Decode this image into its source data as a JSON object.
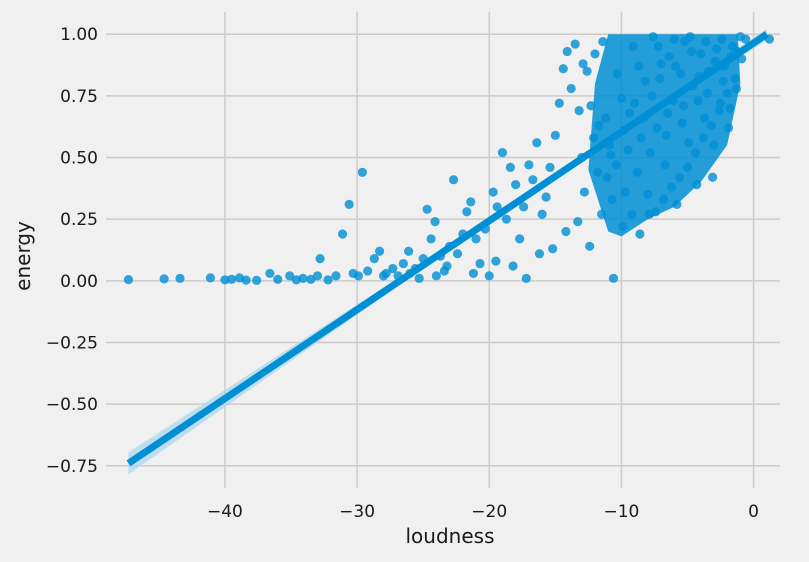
{
  "chart_data": {
    "type": "scatter",
    "title": "",
    "xlabel": "loudness",
    "ylabel": "energy",
    "xlim": [
      -49,
      2
    ],
    "ylim": [
      -0.84,
      1.09
    ],
    "x_ticks": [
      -40,
      -30,
      -20,
      -10,
      0
    ],
    "x_tick_labels": [
      "−40",
      "−30",
      "−20",
      "−10",
      "0"
    ],
    "y_ticks": [
      -0.75,
      -0.5,
      -0.25,
      0.0,
      0.25,
      0.5,
      0.75,
      1.0
    ],
    "y_tick_labels": [
      "−0.75",
      "−0.50",
      "−0.25",
      "0.00",
      "0.25",
      "0.50",
      "0.75",
      "1.00"
    ],
    "grid": true,
    "colors": {
      "background": "#f0f0f0",
      "grid": "#cbcbcb",
      "points": "#008fd5",
      "regression_line": "#008fd5",
      "confidence_band": "#a8d4ee"
    },
    "regression": {
      "x": [
        -47.3,
        1.0
      ],
      "y": [
        -0.74,
        1.0
      ],
      "ci_halfwidth_ends": 0.045
    },
    "series": [
      {
        "points": [
          [
            -47.3,
            0.005
          ],
          [
            -44.6,
            0.008
          ],
          [
            -43.4,
            0.01
          ],
          [
            -41.1,
            0.012
          ],
          [
            -40.0,
            0.004
          ],
          [
            -39.5,
            0.006
          ],
          [
            -38.9,
            0.012
          ],
          [
            -38.4,
            0.003
          ],
          [
            -37.6,
            0.002
          ],
          [
            -36.6,
            0.03
          ],
          [
            -36.0,
            0.006
          ],
          [
            -35.1,
            0.02
          ],
          [
            -34.6,
            0.004
          ],
          [
            -34.1,
            0.01
          ],
          [
            -33.5,
            0.006
          ],
          [
            -33.0,
            0.02
          ],
          [
            -32.8,
            0.09
          ],
          [
            -32.2,
            0.004
          ],
          [
            -31.6,
            0.02
          ],
          [
            -31.1,
            0.19
          ],
          [
            -30.6,
            0.31
          ],
          [
            -30.3,
            0.03
          ],
          [
            -29.9,
            0.02
          ],
          [
            -29.6,
            0.44
          ],
          [
            -29.2,
            0.04
          ],
          [
            -28.7,
            0.09
          ],
          [
            -28.3,
            0.12
          ],
          [
            -27.8,
            0.03
          ],
          [
            -27.3,
            0.05
          ],
          [
            -26.9,
            0.02
          ],
          [
            -26.5,
            0.07
          ],
          [
            -26.1,
            0.12
          ],
          [
            -25.6,
            0.05
          ],
          [
            -25.0,
            0.09
          ],
          [
            -24.7,
            0.29
          ],
          [
            -24.4,
            0.17
          ],
          [
            -24.1,
            0.24
          ],
          [
            -23.7,
            0.1
          ],
          [
            -23.4,
            0.04
          ],
          [
            -23.0,
            0.14
          ],
          [
            -22.7,
            0.41
          ],
          [
            -22.4,
            0.11
          ],
          [
            -22.0,
            0.19
          ],
          [
            -21.7,
            0.28
          ],
          [
            -21.4,
            0.32
          ],
          [
            -21.0,
            0.17
          ],
          [
            -20.7,
            0.07
          ],
          [
            -20.3,
            0.21
          ],
          [
            -20.0,
            0.02
          ],
          [
            -19.7,
            0.36
          ],
          [
            -19.4,
            0.3
          ],
          [
            -19.0,
            0.52
          ],
          [
            -18.7,
            0.25
          ],
          [
            -18.4,
            0.46
          ],
          [
            -18.0,
            0.39
          ],
          [
            -17.7,
            0.17
          ],
          [
            -17.4,
            0.3
          ],
          [
            -17.0,
            0.47
          ],
          [
            -16.7,
            0.41
          ],
          [
            -16.4,
            0.56
          ],
          [
            -16.0,
            0.27
          ],
          [
            -15.7,
            0.34
          ],
          [
            -15.4,
            0.46
          ],
          [
            -15.0,
            0.59
          ],
          [
            -14.7,
            0.72
          ],
          [
            -14.4,
            0.86
          ],
          [
            -14.1,
            0.93
          ],
          [
            -13.8,
            0.78
          ],
          [
            -13.5,
            0.96
          ],
          [
            -13.2,
            0.69
          ],
          [
            -12.9,
            0.88
          ],
          [
            -12.6,
            0.85
          ],
          [
            -12.3,
            0.71
          ],
          [
            -12.0,
            0.92
          ],
          [
            -11.7,
            0.63
          ],
          [
            -11.4,
            0.97
          ],
          [
            -11.1,
            0.42
          ],
          [
            -10.8,
            0.51
          ],
          [
            -10.6,
            0.01
          ],
          [
            -10.3,
            0.84
          ],
          [
            -10.0,
            0.74
          ],
          [
            -9.7,
            0.36
          ],
          [
            -9.4,
            0.68
          ],
          [
            -9.1,
            0.95
          ],
          [
            -8.8,
            0.44
          ],
          [
            -8.5,
            0.58
          ],
          [
            -8.2,
            0.81
          ],
          [
            -7.9,
            0.27
          ],
          [
            -7.6,
            0.99
          ],
          [
            -7.3,
            0.62
          ],
          [
            -7.0,
            0.88
          ],
          [
            -6.7,
            0.47
          ],
          [
            -6.4,
            0.91
          ],
          [
            -6.1,
            0.73
          ],
          [
            -5.8,
            0.31
          ],
          [
            -5.5,
            0.84
          ],
          [
            -5.2,
            0.97
          ],
          [
            -4.9,
            0.56
          ],
          [
            -4.6,
            0.79
          ],
          [
            -4.3,
            0.39
          ],
          [
            -4.0,
            0.92
          ],
          [
            -3.7,
            0.66
          ],
          [
            -3.4,
            0.85
          ],
          [
            -3.1,
            0.42
          ],
          [
            -2.8,
            0.94
          ],
          [
            -2.5,
            0.72
          ],
          [
            -2.2,
            0.87
          ],
          [
            -1.9,
            0.62
          ],
          [
            -1.6,
            0.95
          ],
          [
            -1.3,
            0.78
          ],
          [
            -1.0,
            0.99
          ],
          [
            -0.6,
            0.98
          ],
          [
            1.2,
            0.98
          ],
          [
            -28.0,
            0.02
          ],
          [
            -26.0,
            0.03
          ],
          [
            -25.3,
            0.01
          ],
          [
            -24.0,
            0.02
          ],
          [
            -23.2,
            0.06
          ],
          [
            -21.2,
            0.03
          ],
          [
            -19.5,
            0.08
          ],
          [
            -18.2,
            0.06
          ],
          [
            -17.2,
            0.01
          ],
          [
            -16.2,
            0.11
          ],
          [
            -15.2,
            0.13
          ],
          [
            -14.2,
            0.2
          ],
          [
            -13.3,
            0.24
          ],
          [
            -12.4,
            0.14
          ],
          [
            -11.5,
            0.27
          ],
          [
            -10.7,
            0.33
          ],
          [
            -9.9,
            0.22
          ],
          [
            -9.2,
            0.27
          ],
          [
            -8.6,
            0.19
          ],
          [
            -8.0,
            0.35
          ],
          [
            -7.4,
            0.28
          ],
          [
            -6.8,
            0.33
          ],
          [
            -6.2,
            0.38
          ],
          [
            -5.6,
            0.42
          ],
          [
            -5.0,
            0.46
          ],
          [
            -4.4,
            0.52
          ],
          [
            -3.8,
            0.58
          ],
          [
            -3.2,
            0.63
          ],
          [
            -2.6,
            0.69
          ],
          [
            -2.0,
            0.76
          ],
          [
            -1.4,
            0.82
          ],
          [
            -0.9,
            0.9
          ],
          [
            -12.8,
            0.36
          ],
          [
            -11.8,
            0.44
          ],
          [
            -10.9,
            0.55
          ],
          [
            -9.8,
            0.61
          ],
          [
            -9.0,
            0.72
          ],
          [
            -8.3,
            0.66
          ],
          [
            -7.7,
            0.75
          ],
          [
            -7.1,
            0.82
          ],
          [
            -6.5,
            0.68
          ],
          [
            -5.9,
            0.87
          ],
          [
            -5.3,
            0.71
          ],
          [
            -4.7,
            0.93
          ],
          [
            -4.1,
            0.83
          ],
          [
            -3.5,
            0.76
          ],
          [
            -2.9,
            0.89
          ],
          [
            -2.3,
            0.81
          ],
          [
            -1.7,
            0.91
          ],
          [
            -13.0,
            0.5
          ],
          [
            -12.1,
            0.58
          ],
          [
            -11.2,
            0.66
          ],
          [
            -10.4,
            0.47
          ],
          [
            -9.5,
            0.53
          ],
          [
            -8.7,
            0.87
          ],
          [
            -7.8,
            0.52
          ],
          [
            -7.2,
            0.95
          ],
          [
            -6.6,
            0.59
          ],
          [
            -6.0,
            0.98
          ],
          [
            -5.4,
            0.64
          ],
          [
            -4.8,
            0.99
          ],
          [
            -4.2,
            0.73
          ],
          [
            -3.6,
            0.97
          ],
          [
            -3.0,
            0.55
          ],
          [
            -2.4,
            0.98
          ],
          [
            -1.8,
            0.7
          ],
          [
            -1.2,
            0.93
          ]
        ]
      }
    ]
  }
}
